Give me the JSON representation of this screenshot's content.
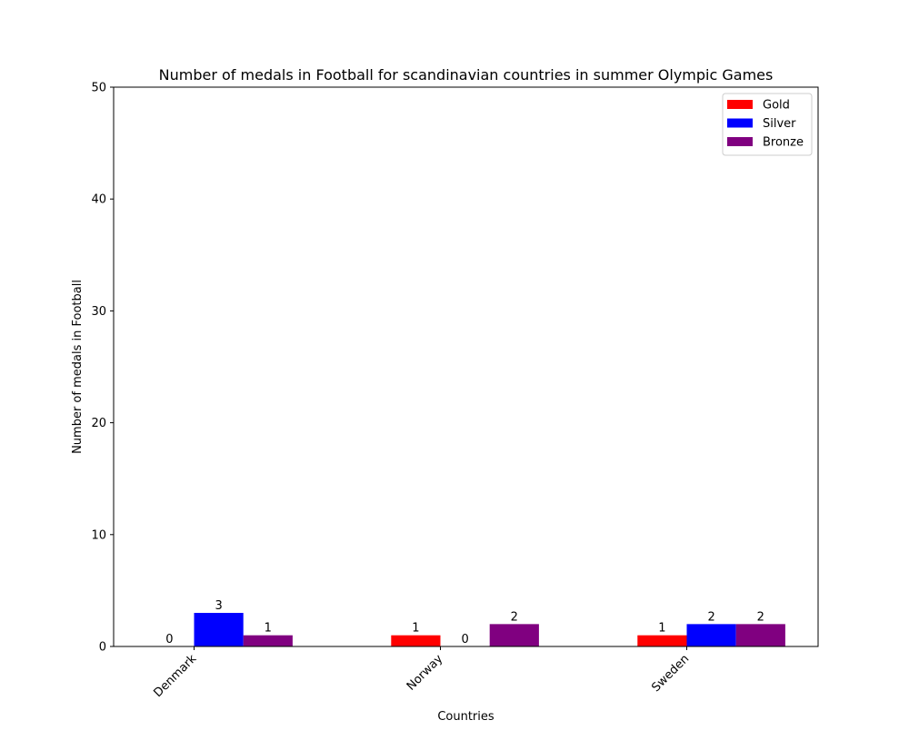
{
  "chart_data": {
    "type": "bar",
    "title": "Number of medals in Football for scandinavian countries in summer Olympic Games",
    "xlabel": "Countries",
    "ylabel": "Number of medals in Football",
    "categories": [
      "Denmark",
      "Norway",
      "Sweden"
    ],
    "series": [
      {
        "name": "Gold",
        "color": "#ff0000",
        "values": [
          0,
          1,
          1
        ]
      },
      {
        "name": "Silver",
        "color": "#0000ff",
        "values": [
          3,
          0,
          2
        ]
      },
      {
        "name": "Bronze",
        "color": "#800080",
        "values": [
          1,
          2,
          2
        ]
      }
    ],
    "ylim": [
      0,
      50
    ],
    "yticks": [
      0,
      10,
      20,
      30,
      40,
      50
    ],
    "grid": false,
    "legend_position": "top-right",
    "data_labels": true
  }
}
